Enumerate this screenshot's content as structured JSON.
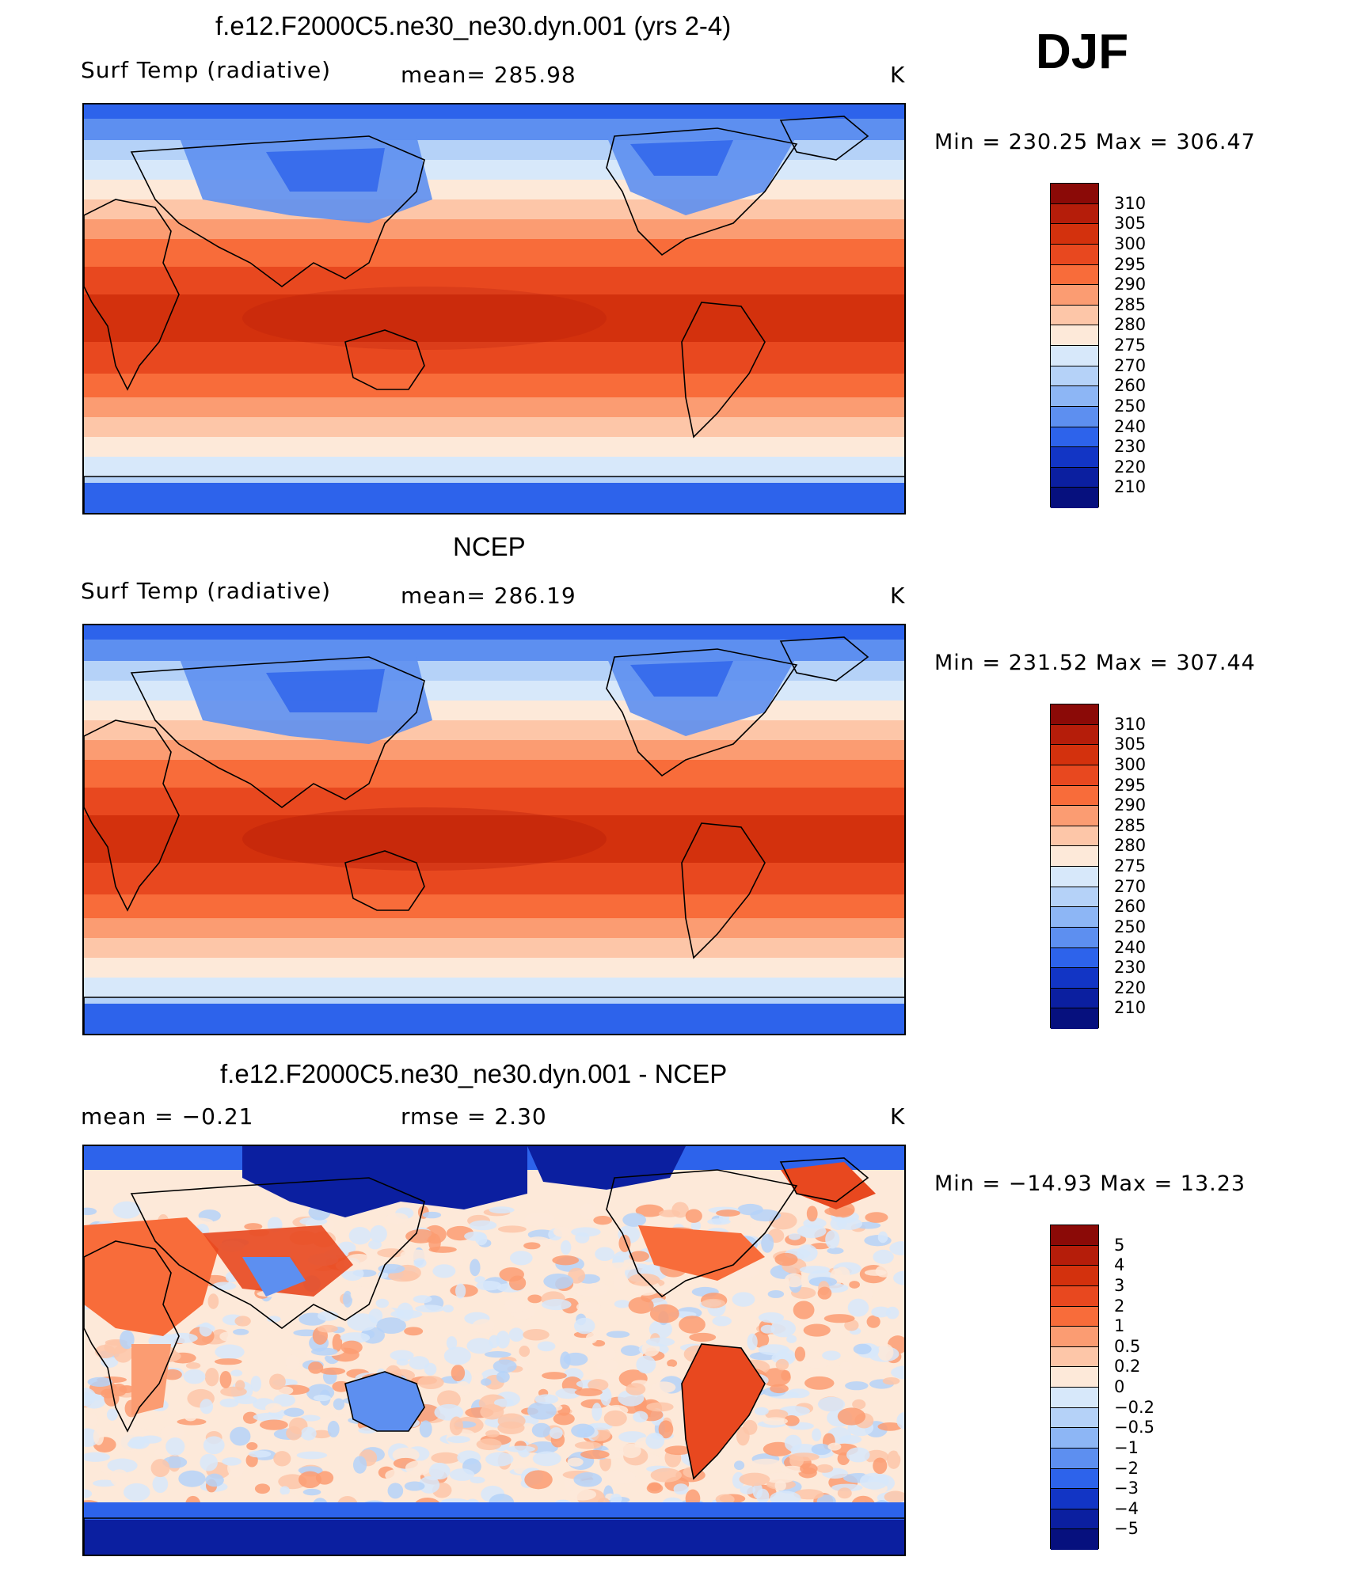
{
  "figure": {
    "season": "DJF"
  },
  "panels": [
    {
      "title": "f.e12.F2000C5.ne30_ne30.dyn.001 (yrs 2-4)",
      "left_label": "Surf Temp (radiative)",
      "center_label": "mean= 285.98",
      "units": "K",
      "minmax": "Min = 230.25 Max = 306.47",
      "colorbar_labels": [
        "310",
        "305",
        "300",
        "295",
        "290",
        "285",
        "280",
        "275",
        "270",
        "260",
        "250",
        "240",
        "230",
        "220",
        "210"
      ],
      "colorbar_colors": [
        "#8b0a07",
        "#b51d0a",
        "#d3310d",
        "#e8481f",
        "#f86c3a",
        "#fb9c72",
        "#fdc6a8",
        "#fde9d9",
        "#d7e8fa",
        "#b5d2f8",
        "#8db6f5",
        "#5d8ff0",
        "#2d63eb",
        "#1235c5",
        "#0b1fa0",
        "#06107e"
      ]
    },
    {
      "title": "NCEP",
      "left_label": "Surf Temp (radiative)",
      "center_label": "mean= 286.19",
      "units": "K",
      "minmax": "Min = 231.52 Max = 307.44",
      "colorbar_labels": [
        "310",
        "305",
        "300",
        "295",
        "290",
        "285",
        "280",
        "275",
        "270",
        "260",
        "250",
        "240",
        "230",
        "220",
        "210"
      ],
      "colorbar_colors": [
        "#8b0a07",
        "#b51d0a",
        "#d3310d",
        "#e8481f",
        "#f86c3a",
        "#fb9c72",
        "#fdc6a8",
        "#fde9d9",
        "#d7e8fa",
        "#b5d2f8",
        "#8db6f5",
        "#5d8ff0",
        "#2d63eb",
        "#1235c5",
        "#0b1fa0",
        "#06107e"
      ]
    },
    {
      "title": "f.e12.F2000C5.ne30_ne30.dyn.001 - NCEP",
      "left_label": "mean = −0.21",
      "center_label": "rmse = 2.30",
      "units": "K",
      "minmax": "Min = −14.93 Max = 13.23",
      "colorbar_labels": [
        "5",
        "4",
        "3",
        "2",
        "1",
        "0.5",
        "0.2",
        "0",
        "−0.2",
        "−0.5",
        "−1",
        "−2",
        "−3",
        "−4",
        "−5"
      ],
      "colorbar_colors": [
        "#8b0a07",
        "#b51d0a",
        "#d3310d",
        "#e8481f",
        "#f86c3a",
        "#fb9c72",
        "#fdc6a8",
        "#fde9d9",
        "#d7e8fa",
        "#b5d2f8",
        "#8db6f5",
        "#5d8ff0",
        "#2d63eb",
        "#1235c5",
        "#0b1fa0",
        "#06107e"
      ]
    }
  ],
  "map_palette": {
    "deep_blue": "#0b1fa0",
    "blue": "#2d63eb",
    "mid_blue": "#5d8ff0",
    "light_blue": "#b5d2f8",
    "pale_blue": "#d7e8fa",
    "cream": "#fde9d9",
    "peach": "#fdc6a8",
    "salmon": "#fb9c72",
    "orange": "#f86c3a",
    "red_orange": "#e8481f",
    "red": "#d3310d",
    "dark_red": "#b51d0a",
    "coast": "#000000"
  }
}
